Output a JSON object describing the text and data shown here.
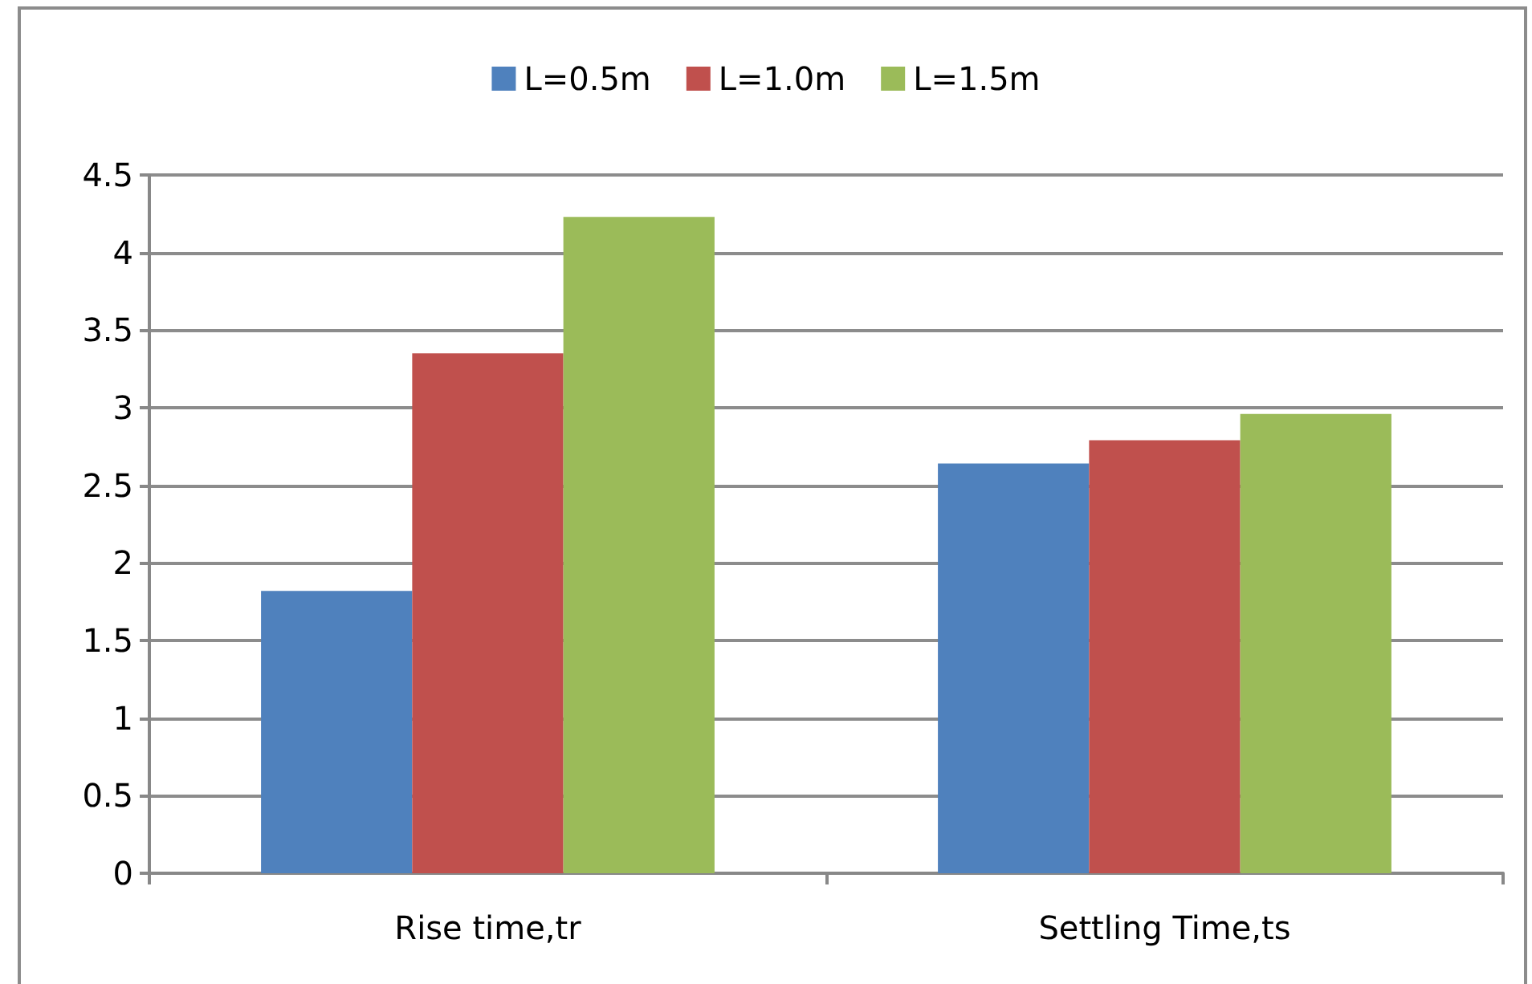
{
  "chart_data": {
    "type": "bar",
    "categories": [
      "Rise time,tr",
      "Settling Time,ts"
    ],
    "series": [
      {
        "name": "L=0.5m",
        "color": "#4f81bd",
        "values": [
          1.82,
          2.64
        ]
      },
      {
        "name": "L=1.0m",
        "color": "#c0504d",
        "values": [
          3.35,
          2.79
        ]
      },
      {
        "name": "L=1.5m",
        "color": "#9bbb59",
        "values": [
          4.23,
          2.96
        ]
      }
    ],
    "ylim": [
      0,
      4.5
    ],
    "yticks": [
      0,
      0.5,
      1,
      1.5,
      2,
      2.5,
      3,
      3.5,
      4,
      4.5
    ],
    "grid": "y",
    "legend": "top"
  }
}
